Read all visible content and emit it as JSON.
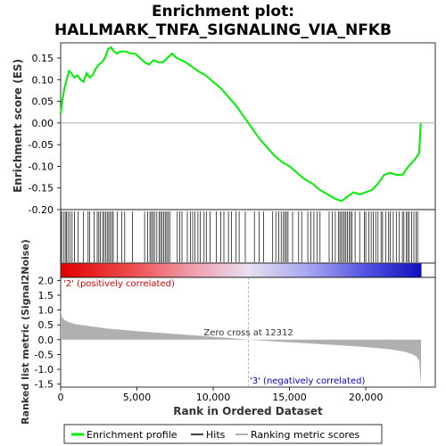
{
  "chart_data": [
    {
      "type": "line",
      "title": "Enrichment plot:",
      "subtitle": "HALLMARK_TNFA_SIGNALING_VIA_NFKB",
      "ylabel": "Enrichment score (ES)",
      "ylim": [
        -0.2,
        0.185
      ],
      "yticks": [
        "0.15",
        "0.10",
        "0.05",
        "0.00",
        "-0.05",
        "-0.10",
        "-0.15",
        "-0.20"
      ],
      "ytick_values": [
        0.15,
        0.1,
        0.05,
        0.0,
        -0.05,
        -0.1,
        -0.15,
        -0.2
      ],
      "xlim": [
        0,
        24000
      ],
      "series": [
        {
          "name": "Enrichment profile",
          "color": "#00ee00",
          "x": [
            0,
            100,
            250,
            400,
            550,
            700,
            900,
            1100,
            1300,
            1500,
            1700,
            1900,
            2100,
            2300,
            2500,
            2700,
            2900,
            3100,
            3300,
            3500,
            3700,
            3900,
            4100,
            4300,
            4600,
            4900,
            5200,
            5500,
            5800,
            6100,
            6400,
            6700,
            7000,
            7300,
            7600,
            7900,
            8200,
            8600,
            9000,
            9500,
            10000,
            10500,
            11000,
            11500,
            12000,
            12500,
            13000,
            13500,
            14000,
            14500,
            15000,
            15500,
            16000,
            16500,
            17000,
            17500,
            18000,
            18400,
            18800,
            19200,
            19600,
            20000,
            20400,
            20800,
            21200,
            21600,
            22000,
            22400,
            22800,
            23200,
            23500,
            23600
          ],
          "y": [
            0.02,
            0.05,
            0.08,
            0.1,
            0.12,
            0.115,
            0.105,
            0.11,
            0.1,
            0.095,
            0.115,
            0.105,
            0.11,
            0.125,
            0.135,
            0.14,
            0.15,
            0.17,
            0.175,
            0.165,
            0.16,
            0.165,
            0.165,
            0.165,
            0.16,
            0.16,
            0.15,
            0.14,
            0.135,
            0.145,
            0.14,
            0.14,
            0.15,
            0.16,
            0.15,
            0.145,
            0.14,
            0.13,
            0.12,
            0.11,
            0.095,
            0.08,
            0.06,
            0.04,
            0.015,
            -0.01,
            -0.035,
            -0.055,
            -0.075,
            -0.09,
            -0.1,
            -0.115,
            -0.13,
            -0.14,
            -0.155,
            -0.165,
            -0.175,
            -0.18,
            -0.17,
            -0.16,
            -0.165,
            -0.16,
            -0.155,
            -0.14,
            -0.12,
            -0.115,
            -0.12,
            -0.12,
            -0.1,
            -0.085,
            -0.07,
            0.0
          ]
        }
      ]
    },
    {
      "type": "area",
      "ylabel": "Ranked list metric (Signal2Noise)",
      "xlabel": "Rank in Ordered Dataset",
      "ylim": [
        -1.6,
        2.1
      ],
      "yticks": [
        "2.0",
        "1.5",
        "1.0",
        "0.5",
        "0.0",
        "-0.5",
        "-1.0",
        "-1.5"
      ],
      "ytick_values": [
        2.0,
        1.5,
        1.0,
        0.5,
        0.0,
        -0.5,
        -1.0,
        -1.5
      ],
      "xlim": [
        0,
        24000
      ],
      "xticks": [
        "0",
        "5,000",
        "10,000",
        "15,000",
        "20,000"
      ],
      "xtick_values": [
        0,
        5000,
        10000,
        15000,
        20000
      ],
      "series": [
        {
          "name": "Ranking metric scores",
          "color": "#b0b0b0",
          "x": [
            0,
            50,
            150,
            300,
            600,
            1000,
            2000,
            3000,
            5000,
            7000,
            9000,
            11000,
            12312,
            14000,
            16000,
            18000,
            20000,
            21500,
            22500,
            23000,
            23300,
            23500,
            23600,
            23620
          ],
          "y": [
            1.05,
            0.85,
            0.72,
            0.65,
            0.58,
            0.52,
            0.45,
            0.38,
            0.29,
            0.21,
            0.14,
            0.06,
            0.0,
            -0.06,
            -0.12,
            -0.18,
            -0.25,
            -0.32,
            -0.4,
            -0.48,
            -0.56,
            -0.7,
            -1.42,
            -1.42
          ]
        }
      ],
      "annotations": {
        "pos": "'2' (positively correlated)",
        "neg": "'3' (negatively correlated)",
        "zero": "Zero cross at 12312"
      },
      "zero_cross": 12312
    }
  ],
  "hits": [
    50,
    180,
    300,
    380,
    480,
    600,
    750,
    900,
    1150,
    1500,
    1800,
    1900,
    2200,
    2400,
    2500,
    2600,
    2750,
    2850,
    2950,
    3050,
    3150,
    3250,
    3350,
    3450,
    3700,
    4000,
    4200,
    4700,
    5500,
    5700,
    5850,
    5950,
    6050,
    6150,
    6300,
    6450,
    6550,
    6650,
    6750,
    6850,
    6950,
    7050,
    7150,
    7650,
    7800,
    7950,
    8300,
    8500,
    8650,
    8800,
    9000,
    9150,
    9400,
    9550,
    9800,
    10200,
    10500,
    10700,
    11000,
    11200,
    11500,
    11700,
    12100,
    12700,
    13000,
    13300,
    13900,
    14100,
    14300,
    14450,
    14600,
    14700,
    14800,
    14900,
    15200,
    15600,
    15800,
    16200,
    16400,
    16600,
    16800,
    17000,
    17600,
    17800,
    18000,
    18200,
    18300,
    18400,
    18500,
    18600,
    18700,
    18800,
    18900,
    19000,
    19100,
    19300,
    19600,
    19900,
    20000,
    20200,
    20350,
    20500,
    20650,
    20800,
    21000,
    21100,
    21300,
    21500,
    21600,
    21800,
    22000,
    22200,
    22400,
    22500,
    22650,
    22750,
    22850,
    23000,
    23150,
    23300,
    23400
  ],
  "legend": {
    "items": [
      {
        "label": "Enrichment profile",
        "color": "#00ee00"
      },
      {
        "label": "Hits",
        "color": "#000000"
      },
      {
        "label": "Ranking metric scores",
        "color": "#b0b0b0"
      }
    ]
  }
}
